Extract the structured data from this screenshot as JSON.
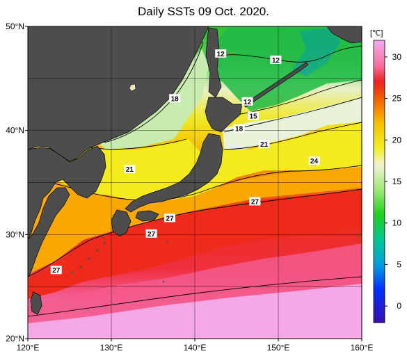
{
  "title": "Daily SSTs 09 Oct. 2020.",
  "map": {
    "lon_range": [
      120,
      160
    ],
    "lat_range": [
      20,
      50
    ],
    "lon_ticks": [
      {
        "value": 120,
        "label": "120°E"
      },
      {
        "value": 130,
        "label": "130°E"
      },
      {
        "value": 140,
        "label": "140°E"
      },
      {
        "value": 150,
        "label": "150°E"
      },
      {
        "value": 160,
        "label": "160°E"
      }
    ],
    "lat_ticks": [
      {
        "value": 50,
        "label": "50°N"
      },
      {
        "value": 40,
        "label": "40°N"
      },
      {
        "value": 30,
        "label": "30°N"
      },
      {
        "value": 20,
        "label": "20°N"
      }
    ],
    "grid_lons": [
      130,
      140,
      150
    ],
    "grid_lats": [
      25,
      30,
      35,
      40,
      45
    ],
    "land_color": "#4d4d4d",
    "contour_labels": [
      {
        "text": "12",
        "lon": 143.1,
        "lat": 47.4
      },
      {
        "text": "12",
        "lon": 149.7,
        "lat": 46.8
      },
      {
        "text": "18",
        "lon": 137.6,
        "lat": 43.1
      },
      {
        "text": "12",
        "lon": 146.3,
        "lat": 42.8
      },
      {
        "text": "15",
        "lon": 147.0,
        "lat": 41.4
      },
      {
        "text": "18",
        "lon": 145.3,
        "lat": 40.2
      },
      {
        "text": "21",
        "lon": 148.3,
        "lat": 38.7
      },
      {
        "text": "24",
        "lon": 154.3,
        "lat": 37.1
      },
      {
        "text": "21",
        "lon": 132.2,
        "lat": 36.3
      },
      {
        "text": "27",
        "lon": 147.2,
        "lat": 33.2
      },
      {
        "text": "27",
        "lon": 137.0,
        "lat": 31.6
      },
      {
        "text": "27",
        "lon": 134.8,
        "lat": 30.1
      },
      {
        "text": "27",
        "lon": 123.4,
        "lat": 26.6
      }
    ]
  },
  "colorbar": {
    "unit": "[℃]",
    "min": -2,
    "max": 32,
    "ticks": [
      {
        "value": 0,
        "label": "0"
      },
      {
        "value": 5,
        "label": "5"
      },
      {
        "value": 10,
        "label": "10"
      },
      {
        "value": 15,
        "label": "15"
      },
      {
        "value": 20,
        "label": "20"
      },
      {
        "value": 25,
        "label": "25"
      },
      {
        "value": 30,
        "label": "30"
      }
    ],
    "stops": [
      {
        "value": -2,
        "color": "#3a10b0"
      },
      {
        "value": 2,
        "color": "#0030ff"
      },
      {
        "value": 5,
        "color": "#00a0e0"
      },
      {
        "value": 8,
        "color": "#00c890"
      },
      {
        "value": 11,
        "color": "#20d020"
      },
      {
        "value": 14,
        "color": "#a0e878"
      },
      {
        "value": 17,
        "color": "#f2f2d0"
      },
      {
        "value": 19,
        "color": "#f2f020"
      },
      {
        "value": 22,
        "color": "#f8c000"
      },
      {
        "value": 25,
        "color": "#f06000"
      },
      {
        "value": 27,
        "color": "#f02020"
      },
      {
        "value": 29,
        "color": "#f870a0"
      },
      {
        "value": 32,
        "color": "#f8a8f0"
      }
    ]
  }
}
